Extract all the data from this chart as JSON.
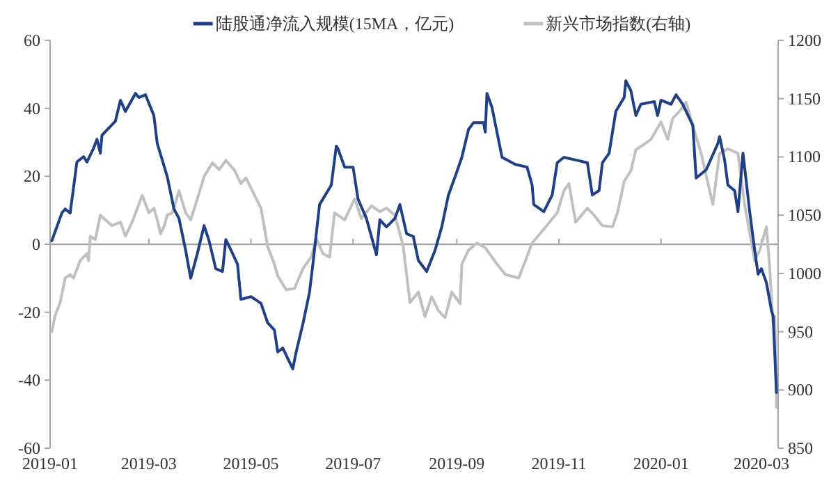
{
  "chart_data": {
    "type": "line",
    "legend": "top",
    "xlim": [
      "2019-01-01",
      "2020-03-11"
    ],
    "xticks": [
      {
        "value": "2019-01-01",
        "label": "2019-01"
      },
      {
        "value": "2019-03-01",
        "label": "2019-03"
      },
      {
        "value": "2019-05-01",
        "label": "2019-05"
      },
      {
        "value": "2019-07-01",
        "label": "2019-07"
      },
      {
        "value": "2019-09-01",
        "label": "2019-09"
      },
      {
        "value": "2019-11-01",
        "label": "2019-11"
      },
      {
        "value": "2020-01-01",
        "label": "2020-01"
      },
      {
        "value": "2020-03-01",
        "label": "2020-03"
      }
    ],
    "ylim": [
      -60,
      60
    ],
    "yticks": [
      -60,
      -40,
      -20,
      0,
      20,
      40,
      60
    ],
    "y2lim": [
      850,
      1200
    ],
    "y2ticks": [
      850,
      900,
      950,
      1000,
      1050,
      1100,
      1150,
      1200
    ],
    "ref_lines": [
      {
        "axis": "y",
        "value": 0,
        "color": "#a6a6a6"
      }
    ],
    "series": [
      {
        "name": "陆股通净流入规模(15MA，亿元)",
        "color": "#1f3f86",
        "x": [
          "2019-01-02",
          "2019-01-08",
          "2019-01-10",
          "2019-01-13",
          "2019-01-17",
          "2019-01-21",
          "2019-01-23",
          "2019-01-27",
          "2019-01-29",
          "2019-01-31",
          "2019-02-01",
          "2019-02-09",
          "2019-02-12",
          "2019-02-15",
          "2019-02-21",
          "2019-02-23",
          "2019-02-27",
          "2019-03-04",
          "2019-03-06",
          "2019-03-12",
          "2019-03-16",
          "2019-03-19",
          "2019-03-23",
          "2019-03-26",
          "2019-03-30",
          "2019-04-03",
          "2019-04-06",
          "2019-04-10",
          "2019-04-14",
          "2019-04-16",
          "2019-04-20",
          "2019-04-23",
          "2019-04-25",
          "2019-05-01",
          "2019-05-07",
          "2019-05-11",
          "2019-05-15",
          "2019-05-17",
          "2019-05-20",
          "2019-05-26",
          "2019-05-28",
          "2019-06-01",
          "2019-06-05",
          "2019-06-07",
          "2019-06-11",
          "2019-06-18",
          "2019-06-21",
          "2019-06-22",
          "2019-06-26",
          "2019-07-01",
          "2019-07-04",
          "2019-07-09",
          "2019-07-15",
          "2019-07-17",
          "2019-07-21",
          "2019-07-26",
          "2019-07-29",
          "2019-08-02",
          "2019-08-06",
          "2019-08-09",
          "2019-08-14",
          "2019-08-19",
          "2019-08-23",
          "2019-08-27",
          "2019-08-31",
          "2019-09-04",
          "2019-09-08",
          "2019-09-11",
          "2019-09-17",
          "2019-09-18",
          "2019-09-19",
          "2019-09-22",
          "2019-09-28",
          "2019-10-06",
          "2019-10-13",
          "2019-10-16",
          "2019-10-17",
          "2019-10-23",
          "2019-10-28",
          "2019-10-31",
          "2019-11-04",
          "2019-11-11",
          "2019-11-18",
          "2019-11-21",
          "2019-11-25",
          "2019-11-27",
          "2019-12-01",
          "2019-12-05",
          "2019-12-10",
          "2019-12-11",
          "2019-12-14",
          "2019-12-17",
          "2019-12-20",
          "2019-12-28",
          "2019-12-30",
          "2020-01-01",
          "2020-01-07",
          "2020-01-10",
          "2020-01-14",
          "2020-01-20",
          "2020-01-22",
          "2020-01-28",
          "2020-02-04",
          "2020-02-05",
          "2020-02-08",
          "2020-02-10",
          "2020-02-14",
          "2020-02-16",
          "2020-02-19",
          "2020-02-23",
          "2020-02-26",
          "2020-02-28",
          "2020-03-01",
          "2020-03-04",
          "2020-03-07",
          "2020-03-08",
          "2020-03-10"
        ],
        "values": [
          1.0,
          9.2,
          10.4,
          9.2,
          24.2,
          25.8,
          24.2,
          28.3,
          30.9,
          26.8,
          32.1,
          36.2,
          42.4,
          39.1,
          44.4,
          43.2,
          44.0,
          37.9,
          29.7,
          19.9,
          10.4,
          7.6,
          -1.8,
          -10.0,
          -2.7,
          5.5,
          1.0,
          -7.2,
          -8.0,
          1.4,
          -2.7,
          -5.9,
          -16.2,
          -15.4,
          -17.4,
          -23.1,
          -25.2,
          -31.7,
          -30.5,
          -36.7,
          -31.7,
          -23.5,
          -14.1,
          -5.9,
          11.7,
          17.4,
          28.9,
          28.1,
          22.7,
          22.7,
          13.3,
          7.6,
          -3.1,
          7.2,
          5.1,
          7.6,
          11.7,
          3.1,
          2.3,
          -4.7,
          -8.0,
          -1.8,
          5.1,
          14.5,
          19.9,
          25.6,
          33.8,
          35.8,
          35.8,
          33.0,
          44.4,
          40.3,
          25.6,
          23.5,
          22.7,
          17.4,
          11.7,
          9.6,
          14.5,
          24.0,
          25.6,
          24.8,
          24.0,
          14.5,
          15.8,
          24.0,
          26.8,
          39.1,
          43.2,
          48.1,
          45.2,
          37.9,
          41.2,
          42.0,
          37.9,
          42.4,
          41.2,
          44.0,
          41.2,
          35.0,
          19.5,
          21.9,
          29.7,
          31.7,
          24.8,
          17.4,
          15.8,
          9.6,
          26.8,
          9.6,
          -1.8,
          -8.8,
          -7.2,
          -11.3,
          -19.5,
          -21.1,
          -43.6
        ]
      },
      {
        "name": "新兴市场指数(右轴)",
        "color": "#c0c0c0",
        "axis": "y2",
        "x": [
          "2019-01-02",
          "2019-01-04",
          "2019-01-07",
          "2019-01-10",
          "2019-01-13",
          "2019-01-15",
          "2019-01-19",
          "2019-01-23",
          "2019-01-24",
          "2019-01-25",
          "2019-01-28",
          "2019-01-31",
          "2019-02-07",
          "2019-02-12",
          "2019-02-15",
          "2019-02-19",
          "2019-02-25",
          "2019-03-01",
          "2019-03-04",
          "2019-03-06",
          "2019-03-08",
          "2019-03-10",
          "2019-03-12",
          "2019-03-15",
          "2019-03-19",
          "2019-03-23",
          "2019-03-26",
          "2019-03-30",
          "2019-04-03",
          "2019-04-08",
          "2019-04-12",
          "2019-04-16",
          "2019-04-21",
          "2019-04-25",
          "2019-04-28",
          "2019-05-07",
          "2019-05-11",
          "2019-05-15",
          "2019-05-17",
          "2019-05-22",
          "2019-05-27",
          "2019-06-01",
          "2019-06-06",
          "2019-06-09",
          "2019-06-13",
          "2019-06-17",
          "2019-06-20",
          "2019-06-26",
          "2019-07-02",
          "2019-07-06",
          "2019-07-12",
          "2019-07-17",
          "2019-07-21",
          "2019-07-26",
          "2019-07-31",
          "2019-08-04",
          "2019-08-09",
          "2019-08-13",
          "2019-08-17",
          "2019-08-21",
          "2019-08-25",
          "2019-08-29",
          "2019-09-03",
          "2019-09-04",
          "2019-09-08",
          "2019-09-13",
          "2019-09-18",
          "2019-09-25",
          "2019-09-30",
          "2019-10-08",
          "2019-10-12",
          "2019-10-16",
          "2019-10-23",
          "2019-10-31",
          "2019-11-04",
          "2019-11-07",
          "2019-11-11",
          "2019-11-18",
          "2019-11-22",
          "2019-11-27",
          "2019-12-03",
          "2019-12-06",
          "2019-12-10",
          "2019-12-14",
          "2019-12-17",
          "2019-12-26",
          "2020-01-01",
          "2020-01-05",
          "2020-01-08",
          "2020-01-12",
          "2020-01-16",
          "2020-01-20",
          "2020-01-25",
          "2020-02-01",
          "2020-02-05",
          "2020-02-10",
          "2020-02-16",
          "2020-02-20",
          "2020-02-26",
          "2020-02-29",
          "2020-03-04",
          "2020-03-06",
          "2020-03-08",
          "2020-03-09",
          "2020-03-10"
        ],
        "values": [
          950,
          964,
          975,
          996,
          999,
          996,
          1011,
          1017,
          1011,
          1032,
          1029,
          1050,
          1041,
          1044,
          1032,
          1044,
          1067,
          1052,
          1056,
          1046,
          1034,
          1040,
          1050,
          1052,
          1071,
          1052,
          1046,
          1064,
          1083,
          1095,
          1089,
          1097,
          1089,
          1077,
          1082,
          1056,
          1023,
          1008,
          998,
          986,
          987,
          1004,
          1014,
          1030,
          1017,
          1014,
          1052,
          1046,
          1064,
          1047,
          1058,
          1053,
          1056,
          1050,
          1023,
          975,
          984,
          963,
          980,
          968,
          962,
          984,
          974,
          1008,
          1020,
          1026,
          1022,
          1008,
          999,
          996,
          1011,
          1026,
          1038,
          1052,
          1071,
          1077,
          1044,
          1056,
          1050,
          1041,
          1040,
          1052,
          1079,
          1088,
          1106,
          1115,
          1130,
          1115,
          1133,
          1139,
          1147,
          1127,
          1103,
          1059,
          1103,
          1107,
          1103,
          1059,
          1011,
          1020,
          1040,
          1004,
          956,
          963,
          885
        ]
      }
    ]
  }
}
